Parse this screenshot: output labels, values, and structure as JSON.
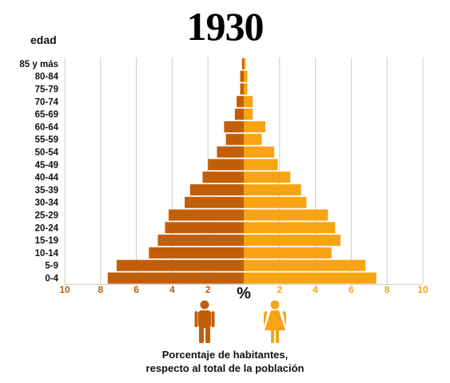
{
  "title": "1930",
  "chart_data": {
    "type": "bar",
    "title": "1930",
    "ylabel": "edad",
    "xlabel": "%",
    "xlim": [
      -10,
      10
    ],
    "x_ticks": [
      "10",
      "8",
      "6",
      "4",
      "2",
      "2",
      "4",
      "6",
      "8",
      "10"
    ],
    "categories": [
      "85 y más",
      "80-84",
      "75-79",
      "70-74",
      "65-69",
      "60-64",
      "55-59",
      "50-54",
      "45-49",
      "40-44",
      "35-39",
      "30-34",
      "25-29",
      "20-24",
      "15-19",
      "10-14",
      "5-9",
      "0-4"
    ],
    "series": [
      {
        "values": [
          0.1,
          0.2,
          0.2,
          0.4,
          0.5,
          1.1,
          1.0,
          1.5,
          2.0,
          2.3,
          3.0,
          3.3,
          4.2,
          4.4,
          4.8,
          5.3,
          7.1,
          7.6
        ]
      },
      {
        "values": [
          0.1,
          0.2,
          0.2,
          0.5,
          0.5,
          1.2,
          1.0,
          1.7,
          1.9,
          2.6,
          3.2,
          3.5,
          4.7,
          5.1,
          5.4,
          4.9,
          6.8,
          7.4
        ]
      }
    ],
    "colors": {
      "male": "#c25e08",
      "female": "#f7a414",
      "grid": "#cccccc"
    }
  },
  "icons": {
    "male": "man-icon",
    "female": "woman-icon"
  },
  "caption": {
    "line1": "Porcentaje de habitantes,",
    "line2": "respecto al total de la población"
  }
}
